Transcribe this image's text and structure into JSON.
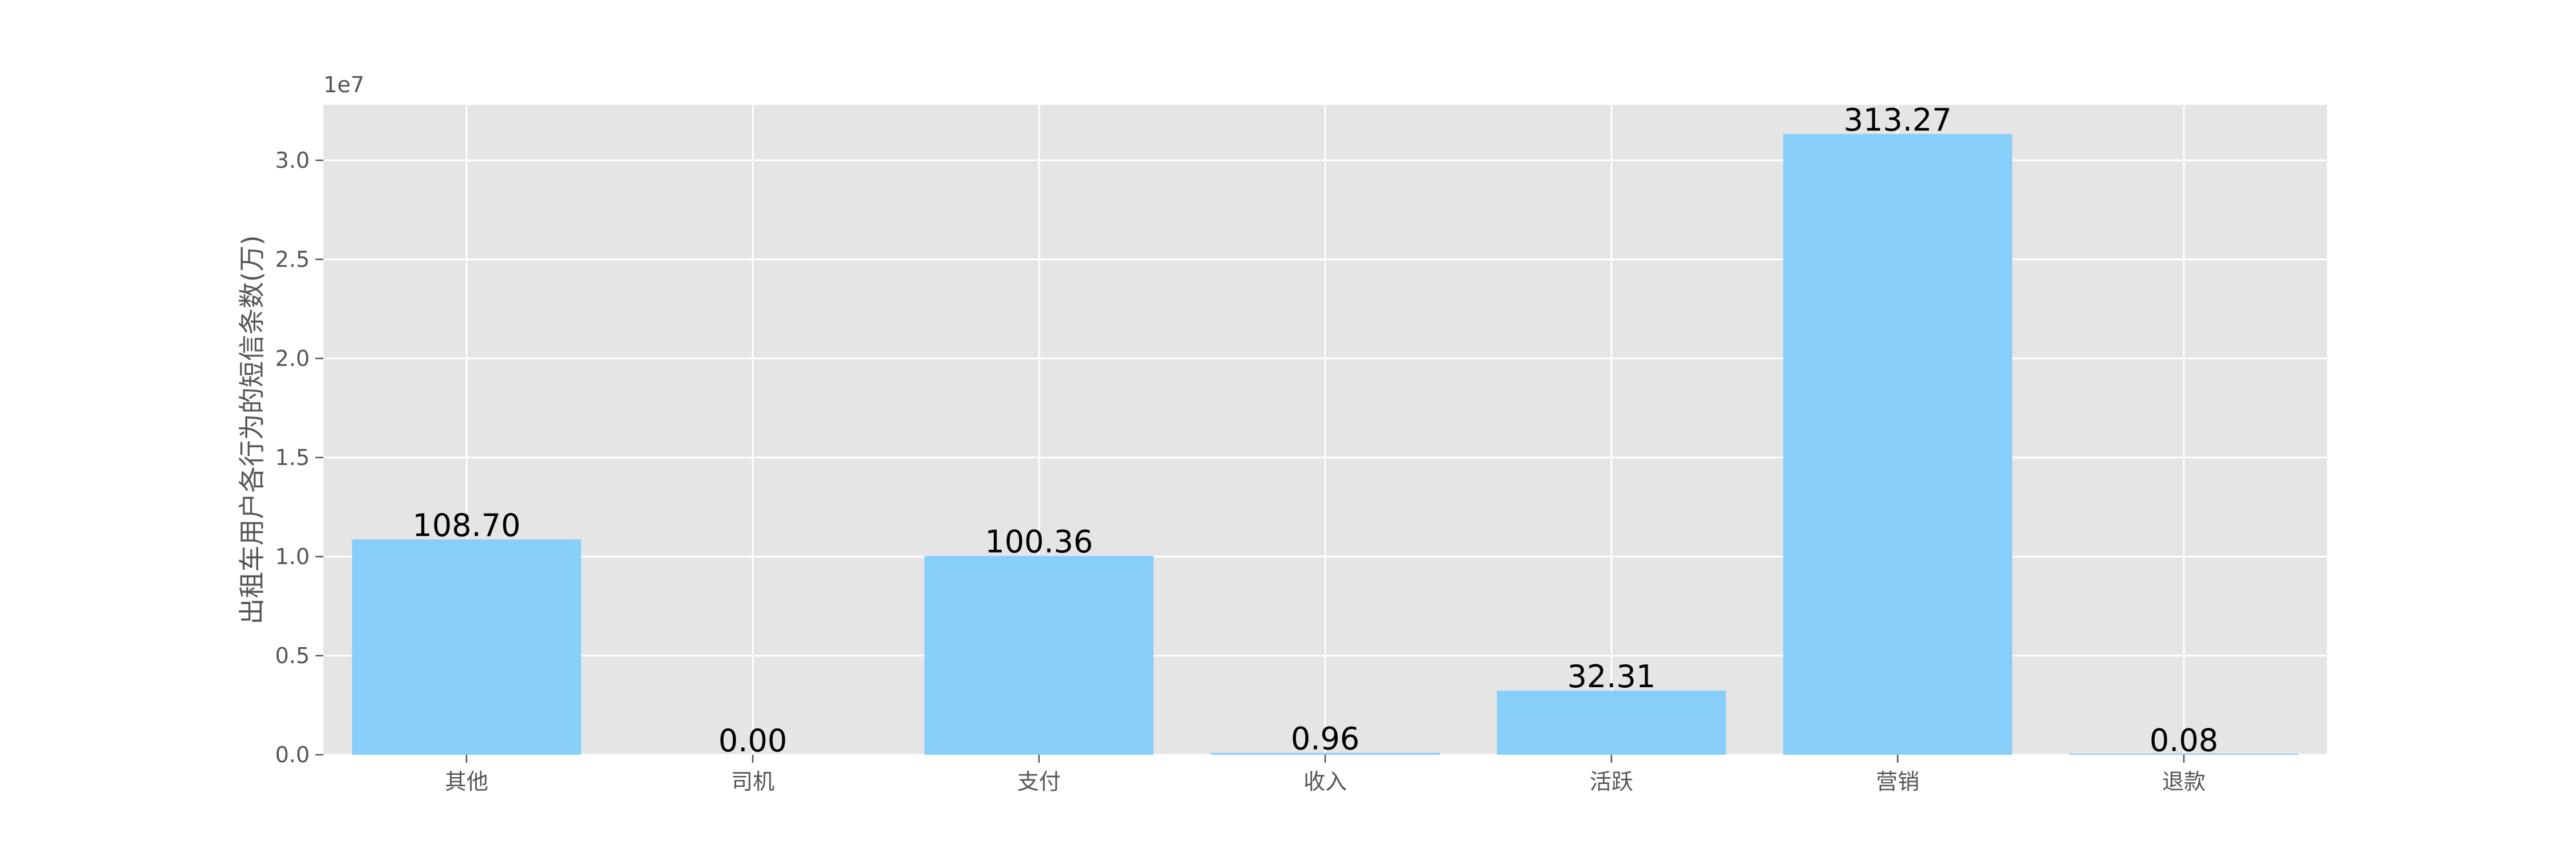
{
  "chart_data": {
    "type": "bar",
    "categories": [
      "其他",
      "司机",
      "支付",
      "收入",
      "活跃",
      "营销",
      "退款"
    ],
    "values": [
      10870000,
      0,
      10036000,
      96000,
      3231000,
      31327000,
      8000
    ],
    "data_labels": [
      "108.70",
      "0.00",
      "100.36",
      "0.96",
      "32.31",
      "313.27",
      "0.08"
    ],
    "ylabel": "出租车用户各行为的短信条数(万)",
    "xlabel": "",
    "ylim": [
      0,
      32800000
    ],
    "y_offset_text": "1e7",
    "yticks": [
      0,
      5000000,
      10000000,
      15000000,
      20000000,
      25000000,
      30000000
    ],
    "ytick_labels": [
      "0.0",
      "0.5",
      "1.0",
      "1.5",
      "2.0",
      "2.5",
      "3.0"
    ],
    "grid": true,
    "colors": {
      "bar": "#87CEFA",
      "plot_background": "#E5E5E5",
      "grid": "#FFFFFF",
      "tick_text": "#555555",
      "label_text": "#000000"
    }
  }
}
